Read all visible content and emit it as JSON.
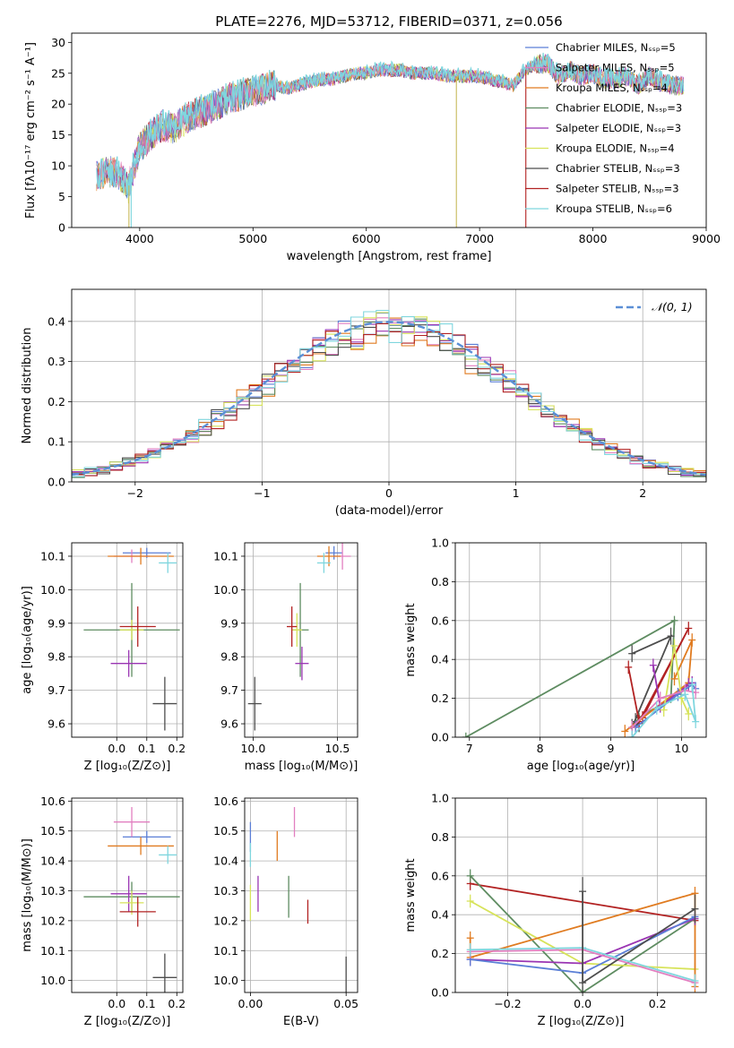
{
  "title": "PLATE=2276, MJD=53712, FIBERID=0371, z=0.056",
  "colors": {
    "Chabrier MILES": "#5b7fd6",
    "Salpeter MILES": "#e27fc0",
    "Kroupa MILES": "#e07b20",
    "Chabrier ELODIE": "#5e8c61",
    "Salpeter ELODIE": "#9a35b3",
    "Kroupa ELODIE": "#d7e35a",
    "Chabrier STELIB": "#4d4d4d",
    "Salpeter STELIB": "#b22222",
    "Kroupa STELIB": "#7fd6de"
  },
  "chart_data": [
    {
      "id": "spectrum",
      "type": "line",
      "xlabel": "wavelength [Angstrom, rest frame]",
      "ylabel": "Flux [fλ10⁻¹⁷ erg cm⁻² s⁻¹ A⁻¹]",
      "xlim": [
        3400,
        9000
      ],
      "ylim": [
        0,
        31.5
      ],
      "xticks": [
        4000,
        5000,
        6000,
        7000,
        8000,
        9000
      ],
      "yticks": [
        0,
        5,
        10,
        15,
        20,
        25,
        30
      ],
      "legend_position": "right",
      "legend": [
        "Chabrier MILES, Nₛₛₚ=5",
        "Salpeter MILES, Nₛₛₚ=5",
        "Kroupa MILES, Nₛₛₚ=4",
        "Chabrier ELODIE, Nₛₛₚ=3",
        "Salpeter ELODIE, Nₛₛₚ=3",
        "Kroupa ELODIE, Nₛₛₚ=4",
        "Chabrier STELIB, Nₛₛₚ=3",
        "Salpeter STELIB, Nₛₛₚ=3",
        "Kroupa STELIB, Nₛₛₚ=6"
      ],
      "envelope": {
        "x": [
          3600,
          3700,
          3800,
          3900,
          4000,
          4100,
          4200,
          4300,
          4400,
          4500,
          4600,
          4700,
          4800,
          4900,
          5000,
          5100,
          5200,
          5300,
          5400,
          5500,
          5600,
          5700,
          5800,
          5900,
          6000,
          6100,
          6200,
          6300,
          6400,
          6500,
          6600,
          6700,
          6800,
          6900,
          7000,
          7100,
          7200,
          7300,
          7400,
          7500,
          7600,
          7700,
          7800,
          7900,
          8000,
          8100,
          8200,
          8300,
          8400,
          8500,
          8600,
          8700,
          8800
        ],
        "y": [
          8,
          9,
          9,
          6.5,
          13,
          15,
          16.5,
          16,
          17.5,
          18.5,
          19,
          20,
          21,
          21.5,
          22,
          22.5,
          23,
          22.5,
          23,
          23.5,
          24,
          24,
          24.5,
          25,
          25,
          25.5,
          25.5,
          25.5,
          25,
          25,
          25,
          24.5,
          24.5,
          24.5,
          24.5,
          24,
          23.5,
          23,
          25.5,
          26.5,
          26.5,
          24.5,
          25.5,
          24.5,
          25,
          24,
          24,
          24.5,
          23,
          24.5,
          23.5,
          23,
          23
        ]
      }
    },
    {
      "id": "residuals",
      "type": "line",
      "xlabel": "(data-model)/error",
      "ylabel": "Normed distribution",
      "xlim": [
        -2.5,
        2.5
      ],
      "ylim": [
        0,
        0.48
      ],
      "xticks": [
        -2,
        -1,
        0,
        1,
        2
      ],
      "yticks": [
        0.0,
        0.1,
        0.2,
        0.3,
        0.4
      ],
      "legend": [
        "𝒩(0, 1)"
      ],
      "legend_position": "top-right",
      "bin_width": 0.1
    },
    {
      "id": "age-vs-Z",
      "type": "scatter",
      "xlabel": "Z [log₁₀(Z/Z⊙)]",
      "ylabel": "age  [log₁₀(age/yr)]",
      "xlim": [
        -0.15,
        0.22
      ],
      "ylim": [
        9.56,
        10.14
      ],
      "xticks": [
        0.0,
        0.1,
        0.2
      ],
      "yticks": [
        9.6,
        9.7,
        9.8,
        9.9,
        10.0,
        10.1
      ],
      "points": [
        {
          "model": "Chabrier MILES",
          "x": 0.1,
          "y": 10.11,
          "xerr": 0.08,
          "yerr": 0.015
        },
        {
          "model": "Salpeter MILES",
          "x": 0.05,
          "y": 10.1,
          "xerr": 0.06,
          "yerr": 0.02
        },
        {
          "model": "Kroupa MILES",
          "x": 0.08,
          "y": 10.1,
          "xerr": 0.11,
          "yerr": 0.025
        },
        {
          "model": "Chabrier ELODIE",
          "x": 0.05,
          "y": 9.88,
          "xerr": 0.16,
          "yerr": 0.14
        },
        {
          "model": "Salpeter ELODIE",
          "x": 0.04,
          "y": 9.78,
          "xerr": 0.06,
          "yerr": 0.04
        },
        {
          "model": "Kroupa ELODIE",
          "x": 0.05,
          "y": 9.88,
          "xerr": 0.04,
          "yerr": 0.03
        },
        {
          "model": "Chabrier STELIB",
          "x": 0.16,
          "y": 9.66,
          "xerr": 0.04,
          "yerr": 0.08
        },
        {
          "model": "Salpeter STELIB",
          "x": 0.07,
          "y": 9.89,
          "xerr": 0.06,
          "yerr": 0.06
        },
        {
          "model": "Kroupa STELIB",
          "x": 0.17,
          "y": 10.08,
          "xerr": 0.03,
          "yerr": 0.03
        }
      ]
    },
    {
      "id": "age-vs-mass",
      "type": "scatter",
      "xlabel": "mass [log₁₀(M/M⊙)]",
      "ylabel": "",
      "xlim": [
        9.95,
        10.62
      ],
      "ylim": [
        9.56,
        10.14
      ],
      "xticks": [
        10.0,
        10.5
      ],
      "yticks": [
        9.6,
        9.7,
        9.8,
        9.9,
        10.0,
        10.1
      ],
      "points": [
        {
          "model": "Chabrier MILES",
          "x": 10.48,
          "y": 10.11,
          "xerr": 0.05,
          "yerr": 0.02
        },
        {
          "model": "Salpeter MILES",
          "x": 10.53,
          "y": 10.1,
          "xerr": 0.05,
          "yerr": 0.04
        },
        {
          "model": "Kroupa MILES",
          "x": 10.45,
          "y": 10.1,
          "xerr": 0.07,
          "yerr": 0.03
        },
        {
          "model": "Chabrier ELODIE",
          "x": 10.28,
          "y": 9.88,
          "xerr": 0.05,
          "yerr": 0.14
        },
        {
          "model": "Salpeter ELODIE",
          "x": 10.29,
          "y": 9.78,
          "xerr": 0.04,
          "yerr": 0.05
        },
        {
          "model": "Kroupa ELODIE",
          "x": 10.26,
          "y": 9.88,
          "xerr": 0.03,
          "yerr": 0.05
        },
        {
          "model": "Chabrier STELIB",
          "x": 10.01,
          "y": 9.66,
          "xerr": 0.04,
          "yerr": 0.08
        },
        {
          "model": "Salpeter STELIB",
          "x": 10.23,
          "y": 9.89,
          "xerr": 0.03,
          "yerr": 0.06
        },
        {
          "model": "Kroupa STELIB",
          "x": 10.42,
          "y": 10.08,
          "xerr": 0.04,
          "yerr": 0.03
        }
      ]
    },
    {
      "id": "weight-vs-age",
      "type": "line",
      "xlabel": "age  [log₁₀(age/yr)]",
      "ylabel": "mass weight",
      "xlim": [
        6.8,
        10.35
      ],
      "ylim": [
        0,
        1.0
      ],
      "xticks": [
        7,
        8,
        9,
        10
      ],
      "yticks": [
        0.0,
        0.2,
        0.4,
        0.6,
        0.8,
        1.0
      ],
      "series": [
        {
          "model": "Chabrier ELODIE",
          "x": [
            6.95,
            9.9,
            9.85,
            9.4,
            9.3
          ],
          "y": [
            0.0,
            0.6,
            0.2,
            0.1,
            0.05
          ],
          "yerr": 0.01
        },
        {
          "model": "Chabrier STELIB",
          "x": [
            9.3,
            9.85,
            9.3,
            9.4,
            9.35
          ],
          "y": [
            0.43,
            0.52,
            0.05,
            0.07,
            0.08
          ],
          "yerr": 0.03
        },
        {
          "model": "Salpeter STELIB",
          "x": [
            9.25,
            9.4,
            10.1,
            9.45
          ],
          "y": [
            0.36,
            0.08,
            0.56,
            0.1
          ],
          "yerr": 0.02
        },
        {
          "model": "Kroupa MILES",
          "x": [
            9.2,
            10.1,
            10.15,
            9.9
          ],
          "y": [
            0.03,
            0.28,
            0.5,
            0.3
          ],
          "yerr": 0.02
        },
        {
          "model": "Salpeter ELODIE",
          "x": [
            9.6,
            9.7,
            10.1,
            10.15
          ],
          "y": [
            0.37,
            0.16,
            0.27,
            0.28
          ],
          "yerr": 0.02
        },
        {
          "model": "Kroupa ELODIE",
          "x": [
            9.75,
            9.9,
            10.0,
            10.1
          ],
          "y": [
            0.14,
            0.47,
            0.2,
            0.12
          ],
          "yerr": 0.02
        },
        {
          "model": "Chabrier MILES",
          "x": [
            9.35,
            9.95,
            10.15,
            10.2
          ],
          "y": [
            0.05,
            0.22,
            0.27,
            0.25
          ],
          "yerr": 0.02
        },
        {
          "model": "Salpeter MILES",
          "x": [
            9.3,
            9.7,
            10.05,
            10.2
          ],
          "y": [
            0.05,
            0.2,
            0.24,
            0.23
          ],
          "yerr": 0.02
        },
        {
          "model": "Kroupa STELIB",
          "x": [
            9.3,
            9.65,
            10.05,
            10.2,
            10.15
          ],
          "y": [
            0.0,
            0.15,
            0.22,
            0.08,
            0.27
          ],
          "yerr": 0.02
        }
      ]
    },
    {
      "id": "mass-vs-Z",
      "type": "scatter",
      "xlabel": "Z [log₁₀(Z/Z⊙)]",
      "ylabel": "mass [log₁₀(M/M⊙)]",
      "xlim": [
        -0.15,
        0.22
      ],
      "ylim": [
        9.96,
        10.61
      ],
      "xticks": [
        0.0,
        0.1,
        0.2
      ],
      "yticks": [
        10.0,
        10.1,
        10.2,
        10.3,
        10.4,
        10.5,
        10.6
      ],
      "points": [
        {
          "model": "Chabrier MILES",
          "x": 0.1,
          "y": 10.48,
          "xerr": 0.08,
          "yerr": 0.02
        },
        {
          "model": "Salpeter MILES",
          "x": 0.05,
          "y": 10.53,
          "xerr": 0.06,
          "yerr": 0.05
        },
        {
          "model": "Kroupa MILES",
          "x": 0.08,
          "y": 10.45,
          "xerr": 0.11,
          "yerr": 0.03
        },
        {
          "model": "Chabrier ELODIE",
          "x": 0.05,
          "y": 10.28,
          "xerr": 0.16,
          "yerr": 0.05
        },
        {
          "model": "Salpeter ELODIE",
          "x": 0.04,
          "y": 10.29,
          "xerr": 0.06,
          "yerr": 0.06
        },
        {
          "model": "Kroupa ELODIE",
          "x": 0.05,
          "y": 10.26,
          "xerr": 0.04,
          "yerr": 0.04
        },
        {
          "model": "Chabrier STELIB",
          "x": 0.16,
          "y": 10.01,
          "xerr": 0.04,
          "yerr": 0.08
        },
        {
          "model": "Salpeter STELIB",
          "x": 0.07,
          "y": 10.23,
          "xerr": 0.06,
          "yerr": 0.05
        },
        {
          "model": "Kroupa STELIB",
          "x": 0.17,
          "y": 10.42,
          "xerr": 0.03,
          "yerr": 0.03
        }
      ]
    },
    {
      "id": "mass-vs-EBV",
      "type": "scatter",
      "xlabel": "E(B-V)",
      "ylabel": "",
      "xlim": [
        -0.003,
        0.056
      ],
      "ylim": [
        9.96,
        10.61
      ],
      "xticks": [
        0.0,
        0.05
      ],
      "yticks": [
        10.0,
        10.1,
        10.2,
        10.3,
        10.4,
        10.5,
        10.6
      ],
      "points": [
        {
          "model": "Chabrier MILES",
          "x": 0.0,
          "y": 10.48,
          "yerr": 0.05
        },
        {
          "model": "Salpeter MILES",
          "x": 0.023,
          "y": 10.53,
          "yerr": 0.05
        },
        {
          "model": "Kroupa MILES",
          "x": 0.014,
          "y": 10.45,
          "yerr": 0.05
        },
        {
          "model": "Chabrier ELODIE",
          "x": 0.02,
          "y": 10.28,
          "yerr": 0.07
        },
        {
          "model": "Salpeter ELODIE",
          "x": 0.004,
          "y": 10.29,
          "yerr": 0.06
        },
        {
          "model": "Kroupa ELODIE",
          "x": 0.0,
          "y": 10.26,
          "yerr": 0.06
        },
        {
          "model": "Chabrier STELIB",
          "x": 0.05,
          "y": 10.01,
          "yerr": 0.07
        },
        {
          "model": "Salpeter STELIB",
          "x": 0.03,
          "y": 10.23,
          "yerr": 0.04
        },
        {
          "model": "Kroupa STELIB",
          "x": 0.0,
          "y": 10.42,
          "yerr": 0.04
        }
      ]
    },
    {
      "id": "weight-vs-Z",
      "type": "line",
      "xlabel": "Z [log₁₀(Z/Z⊙)]",
      "ylabel": "mass weight",
      "xlim": [
        -0.34,
        0.33
      ],
      "ylim": [
        0,
        1.0
      ],
      "xticks": [
        -0.2,
        0.0,
        0.2
      ],
      "yticks": [
        0.0,
        0.2,
        0.4,
        0.6,
        0.8,
        1.0
      ],
      "series": [
        {
          "model": "Salpeter STELIB",
          "x": [
            -0.3,
            0.3
          ],
          "y": [
            0.56,
            0.37
          ],
          "yerr": 0.02
        },
        {
          "model": "Chabrier ELODIE",
          "x": [
            -0.3,
            0.0,
            0.3
          ],
          "y": [
            0.6,
            0.0,
            0.38
          ],
          "yerr": 0.02
        },
        {
          "model": "Kroupa ELODIE",
          "x": [
            -0.3,
            0.0,
            0.3
          ],
          "y": [
            0.47,
            0.15,
            0.12
          ],
          "yerr": 0.02
        },
        {
          "model": "Kroupa MILES",
          "x": [
            -0.3,
            -0.3,
            0.3,
            0.3
          ],
          "y": [
            0.28,
            0.18,
            0.51,
            0.03
          ],
          "yerr": 0.02
        },
        {
          "model": "Salpeter ELODIE",
          "x": [
            -0.3,
            0.0,
            0.3
          ],
          "y": [
            0.17,
            0.15,
            0.38
          ],
          "yerr": 0.02
        },
        {
          "model": "Chabrier MILES",
          "x": [
            -0.3,
            0.0,
            0.3
          ],
          "y": [
            0.17,
            0.1,
            0.39
          ],
          "yerr": 0.02
        },
        {
          "model": "Salpeter MILES",
          "x": [
            -0.3,
            0.0,
            0.3
          ],
          "y": [
            0.21,
            0.22,
            0.05
          ],
          "yerr": 0.02
        },
        {
          "model": "Kroupa STELIB",
          "x": [
            -0.3,
            0.0,
            0.3
          ],
          "y": [
            0.22,
            0.23,
            0.06
          ],
          "yerr": 0.02
        },
        {
          "model": "Chabrier STELIB",
          "x": [
            0.0,
            0.0,
            0.3
          ],
          "y": [
            0.52,
            0.05,
            0.43
          ],
          "yerr": 0.06
        }
      ]
    }
  ]
}
